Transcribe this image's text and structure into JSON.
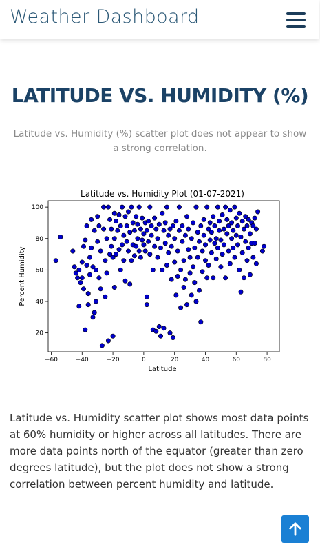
{
  "navbar": {
    "brand": "Weather Dashboard",
    "menu_icon": "hamburger-icon"
  },
  "page": {
    "title": "LATITUDE VS. HUMIDITY (%)",
    "subtitle": "Latitude vs. Humidity (%) scatter plot does not appear to show a strong correlation.",
    "description": "Latitude vs. Humidity scatter plot shows most data points at 60% humidity or higher across all latitudes. There are more data points north of the equator (greater than zero degrees latitude), but the plot does not show a strong correlation between percent humidity and latitude."
  },
  "back_to_top": {
    "icon": "arrow-up-icon"
  },
  "chart_data": {
    "type": "scatter",
    "title": "Latitude vs. Humidity Plot (01-07-2021)",
    "xlabel": "Latitude",
    "ylabel": "Percent Humidity",
    "xlim": [
      -62,
      88
    ],
    "ylim": [
      8,
      104
    ],
    "xticks": [
      -60,
      -40,
      -20,
      0,
      20,
      40,
      60,
      80
    ],
    "yticks": [
      20,
      40,
      60,
      80,
      100
    ],
    "xtick_labels": [
      "−60",
      "−40",
      "−20",
      "0",
      "20",
      "40",
      "60",
      "80"
    ],
    "ytick_labels": [
      "20",
      "40",
      "60",
      "80",
      "100"
    ],
    "grid": false,
    "marker_color": "#0000cc",
    "marker_edge": "#000000",
    "points": [
      [
        -54,
        81
      ],
      [
        -57,
        66
      ],
      [
        -46,
        72
      ],
      [
        -45,
        62
      ],
      [
        -44,
        58
      ],
      [
        -43,
        55
      ],
      [
        -42,
        37
      ],
      [
        -42,
        60
      ],
      [
        -41,
        52
      ],
      [
        -40,
        55
      ],
      [
        -40,
        65
      ],
      [
        -39,
        75
      ],
      [
        -39,
        48
      ],
      [
        -38,
        22
      ],
      [
        -38,
        79
      ],
      [
        -37,
        88
      ],
      [
        -37,
        63
      ],
      [
        -36,
        38
      ],
      [
        -36,
        45
      ],
      [
        -35,
        57
      ],
      [
        -35,
        68
      ],
      [
        -34,
        92
      ],
      [
        -34,
        74
      ],
      [
        -33,
        30
      ],
      [
        -33,
        62
      ],
      [
        -32,
        85
      ],
      [
        -32,
        33
      ],
      [
        -31,
        60
      ],
      [
        -31,
        40
      ],
      [
        -30,
        78
      ],
      [
        -30,
        94
      ],
      [
        -29,
        88
      ],
      [
        -29,
        55
      ],
      [
        -28,
        48
      ],
      [
        -28,
        72
      ],
      [
        -27,
        12
      ],
      [
        -26,
        86
      ],
      [
        -26,
        100
      ],
      [
        -25,
        66
      ],
      [
        -25,
        43
      ],
      [
        -24,
        80
      ],
      [
        -24,
        58
      ],
      [
        -23,
        100
      ],
      [
        -23,
        15
      ],
      [
        -22,
        92
      ],
      [
        -22,
        70
      ],
      [
        -21,
        75
      ],
      [
        -21,
        86
      ],
      [
        -20,
        68
      ],
      [
        -20,
        18
      ],
      [
        -19,
        96
      ],
      [
        -19,
        80
      ],
      [
        -19,
        49
      ],
      [
        -18,
        70
      ],
      [
        -18,
        91
      ],
      [
        -17,
        85
      ],
      [
        -16,
        73
      ],
      [
        -16,
        95
      ],
      [
        -15,
        60
      ],
      [
        -15,
        88
      ],
      [
        -14,
        100
      ],
      [
        -14,
        76
      ],
      [
        -13,
        66
      ],
      [
        -13,
        82
      ],
      [
        -12,
        94
      ],
      [
        -12,
        53
      ],
      [
        -11,
        78
      ],
      [
        -11,
        88
      ],
      [
        -10,
        72
      ],
      [
        -10,
        97
      ],
      [
        -9,
        51
      ],
      [
        -9,
        84
      ],
      [
        -8,
        66
      ],
      [
        -8,
        100
      ],
      [
        -7,
        76
      ],
      [
        -7,
        90
      ],
      [
        -6,
        69
      ],
      [
        -6,
        85
      ],
      [
        -5,
        94
      ],
      [
        -5,
        75
      ],
      [
        -4,
        80
      ],
      [
        -4,
        89
      ],
      [
        -3,
        100
      ],
      [
        -3,
        72
      ],
      [
        -2,
        68
      ],
      [
        -2,
        86
      ],
      [
        -1,
        79
      ],
      [
        -1,
        93
      ],
      [
        0,
        76
      ],
      [
        0,
        83
      ],
      [
        1,
        90
      ],
      [
        1,
        72
      ],
      [
        2,
        38
      ],
      [
        2,
        43
      ],
      [
        2,
        85
      ],
      [
        3,
        78
      ],
      [
        3,
        91
      ],
      [
        4,
        100
      ],
      [
        4,
        70
      ],
      [
        5,
        82
      ],
      [
        5,
        88
      ],
      [
        6,
        22
      ],
      [
        6,
        60
      ],
      [
        7,
        75
      ],
      [
        7,
        93
      ],
      [
        8,
        21
      ],
      [
        8,
        86
      ],
      [
        9,
        68
      ],
      [
        9,
        80
      ],
      [
        10,
        24
      ],
      [
        10,
        89
      ],
      [
        11,
        18
      ],
      [
        11,
        74
      ],
      [
        12,
        96
      ],
      [
        12,
        60
      ],
      [
        13,
        85
      ],
      [
        13,
        23
      ],
      [
        14,
        77
      ],
      [
        14,
        90
      ],
      [
        15,
        100
      ],
      [
        15,
        63
      ],
      [
        16,
        82
      ],
      [
        16,
        71
      ],
      [
        17,
        86
      ],
      [
        17,
        20
      ],
      [
        18,
        54
      ],
      [
        18,
        75
      ],
      [
        19,
        88
      ],
      [
        19,
        17
      ],
      [
        20,
        65
      ],
      [
        20,
        80
      ],
      [
        21,
        91
      ],
      [
        21,
        44
      ],
      [
        22,
        56
      ],
      [
        22,
        72
      ],
      [
        23,
        85
      ],
      [
        23,
        100
      ],
      [
        24,
        36
      ],
      [
        24,
        60
      ],
      [
        25,
        78
      ],
      [
        25,
        88
      ],
      [
        26,
        49
      ],
      [
        26,
        66
      ],
      [
        27,
        82
      ],
      [
        27,
        54
      ],
      [
        28,
        94
      ],
      [
        28,
        38
      ],
      [
        29,
        73
      ],
      [
        29,
        86
      ],
      [
        30,
        58
      ],
      [
        30,
        68
      ],
      [
        31,
        80
      ],
      [
        31,
        44
      ],
      [
        32,
        90
      ],
      [
        32,
        62
      ],
      [
        33,
        52
      ],
      [
        33,
        74
      ],
      [
        34,
        100
      ],
      [
        34,
        40
      ],
      [
        35,
        84
      ],
      [
        35,
        68
      ],
      [
        36,
        78
      ],
      [
        36,
        47
      ],
      [
        37,
        88
      ],
      [
        37,
        27
      ],
      [
        38,
        59
      ],
      [
        38,
        72
      ],
      [
        39,
        82
      ],
      [
        39,
        92
      ],
      [
        40,
        66
      ],
      [
        40,
        76
      ],
      [
        41,
        100
      ],
      [
        41,
        55
      ],
      [
        42,
        86
      ],
      [
        42,
        63
      ],
      [
        43,
        79
      ],
      [
        43,
        90
      ],
      [
        44,
        71
      ],
      [
        44,
        84
      ],
      [
        45,
        94
      ],
      [
        45,
        55
      ],
      [
        46,
        77
      ],
      [
        46,
        88
      ],
      [
        47,
        67
      ],
      [
        47,
        80
      ],
      [
        48,
        100
      ],
      [
        48,
        74
      ],
      [
        49,
        85
      ],
      [
        49,
        91
      ],
      [
        50,
        62
      ],
      [
        50,
        79
      ],
      [
        51,
        95
      ],
      [
        51,
        70
      ],
      [
        52,
        86
      ],
      [
        52,
        76
      ],
      [
        53,
        100
      ],
      [
        53,
        55
      ],
      [
        54,
        83
      ],
      [
        54,
        92
      ],
      [
        55,
        72
      ],
      [
        55,
        88
      ],
      [
        56,
        98
      ],
      [
        56,
        64
      ],
      [
        57,
        80
      ],
      [
        57,
        90
      ],
      [
        58,
        74
      ],
      [
        58,
        85
      ],
      [
        59,
        100
      ],
      [
        59,
        68
      ],
      [
        60,
        82
      ],
      [
        60,
        93
      ],
      [
        61,
        76
      ],
      [
        61,
        88
      ],
      [
        62,
        60
      ],
      [
        62,
        96
      ],
      [
        63,
        46
      ],
      [
        63,
        81
      ],
      [
        64,
        91
      ],
      [
        64,
        71
      ],
      [
        65,
        86
      ],
      [
        65,
        55
      ],
      [
        66,
        94
      ],
      [
        66,
        78
      ],
      [
        67,
        88
      ],
      [
        67,
        66
      ],
      [
        68,
        92
      ],
      [
        68,
        74
      ],
      [
        69,
        83
      ],
      [
        69,
        57
      ],
      [
        70,
        90
      ],
      [
        70,
        77
      ],
      [
        71,
        68
      ],
      [
        71,
        88
      ],
      [
        72,
        93
      ],
      [
        72,
        77
      ],
      [
        73,
        64
      ],
      [
        73,
        86
      ],
      [
        74,
        97
      ],
      [
        77,
        72
      ],
      [
        78,
        75
      ]
    ]
  }
}
